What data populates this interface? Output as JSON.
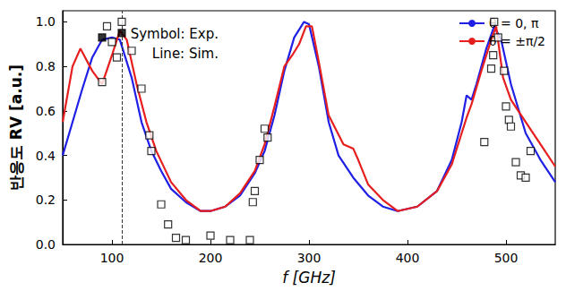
{
  "chart_data": {
    "type": "line",
    "x_label": "f [GHz]",
    "y_label": "반응도 RV [a.u.]",
    "annotations": [
      "Symbol: Exp.",
      "Line: Sim."
    ],
    "xlim": [
      50,
      550
    ],
    "xticks": [
      100,
      200,
      300,
      400,
      500
    ],
    "ylim": [
      0,
      1.05
    ],
    "yticks": [
      {
        "value": 0,
        "label": "0.0"
      },
      0.2,
      0.4,
      0.6,
      0.8,
      {
        "value": 1,
        "label": "1.0"
      }
    ],
    "grid": false,
    "legend": "upper right",
    "vlines": [
      110
    ],
    "series": [
      {
        "name": "θ = 0, π",
        "type": "line",
        "color": "#1f1fe6",
        "line_style": "solid",
        "marker": "none",
        "x": [
          50,
          60,
          70,
          80,
          90,
          100,
          108,
          120,
          130,
          140,
          150,
          160,
          175,
          190,
          200,
          215,
          230,
          245,
          255,
          265,
          275,
          285,
          295,
          300,
          310,
          320,
          330,
          345,
          360,
          375,
          390,
          410,
          430,
          445,
          455,
          460,
          465,
          470,
          480,
          488,
          495,
          505,
          520,
          535,
          550
        ],
        "values": [
          0.4,
          0.55,
          0.7,
          0.84,
          0.92,
          0.93,
          0.92,
          0.75,
          0.55,
          0.42,
          0.33,
          0.25,
          0.19,
          0.15,
          0.15,
          0.17,
          0.22,
          0.32,
          0.42,
          0.58,
          0.78,
          0.93,
          1.0,
          0.99,
          0.8,
          0.55,
          0.4,
          0.3,
          0.22,
          0.17,
          0.15,
          0.17,
          0.24,
          0.38,
          0.55,
          0.67,
          0.65,
          0.72,
          0.88,
          0.98,
          0.92,
          0.72,
          0.5,
          0.38,
          0.28
        ]
      },
      {
        "name": "θ = ±π/2",
        "type": "line",
        "color": "#e61e1e",
        "line_style": "solid",
        "marker": "none",
        "x": [
          50,
          60,
          68,
          80,
          90,
          100,
          108,
          115,
          125,
          135,
          145,
          160,
          175,
          190,
          200,
          215,
          230,
          245,
          255,
          265,
          275,
          283,
          290,
          297,
          303,
          310,
          320,
          335,
          345,
          350,
          360,
          375,
          390,
          410,
          430,
          445,
          455,
          460,
          465,
          475,
          485,
          490,
          497,
          505,
          520,
          535,
          550
        ],
        "values": [
          0.55,
          0.8,
          0.88,
          0.78,
          0.72,
          0.85,
          0.96,
          0.92,
          0.72,
          0.55,
          0.42,
          0.28,
          0.2,
          0.15,
          0.15,
          0.17,
          0.23,
          0.33,
          0.45,
          0.62,
          0.8,
          0.85,
          0.9,
          0.98,
          0.98,
          0.82,
          0.58,
          0.45,
          0.43,
          0.38,
          0.27,
          0.2,
          0.15,
          0.17,
          0.24,
          0.36,
          0.5,
          0.57,
          0.63,
          0.78,
          0.92,
          0.98,
          0.75,
          0.65,
          0.55,
          0.45,
          0.35
        ]
      },
      {
        "name": "θ = 0, π",
        "type": "scatter",
        "color": "#000000",
        "marker": "open_square",
        "x": [
          90,
          95,
          100,
          105,
          110,
          120,
          130,
          138,
          140,
          150,
          157,
          165,
          175,
          200,
          220,
          240,
          243,
          245,
          250,
          255,
          258,
          478,
          485,
          487,
          488,
          492,
          498,
          500,
          503,
          505,
          510,
          515,
          520,
          525
        ],
        "values": [
          0.73,
          0.98,
          0.91,
          0.84,
          1.0,
          0.87,
          0.7,
          0.49,
          0.42,
          0.18,
          0.09,
          0.03,
          0.02,
          0.04,
          0.02,
          0.02,
          0.19,
          0.24,
          0.38,
          0.52,
          0.48,
          0.46,
          0.79,
          0.85,
          1.0,
          0.93,
          0.78,
          0.62,
          0.56,
          0.53,
          0.37,
          0.31,
          0.3,
          0.42
        ]
      },
      {
        "name": "θ = ±π/2",
        "type": "scatter",
        "color": "#000000",
        "marker": "filled_square",
        "x": [
          90,
          110
        ],
        "values": [
          0.93,
          0.95
        ]
      }
    ]
  }
}
